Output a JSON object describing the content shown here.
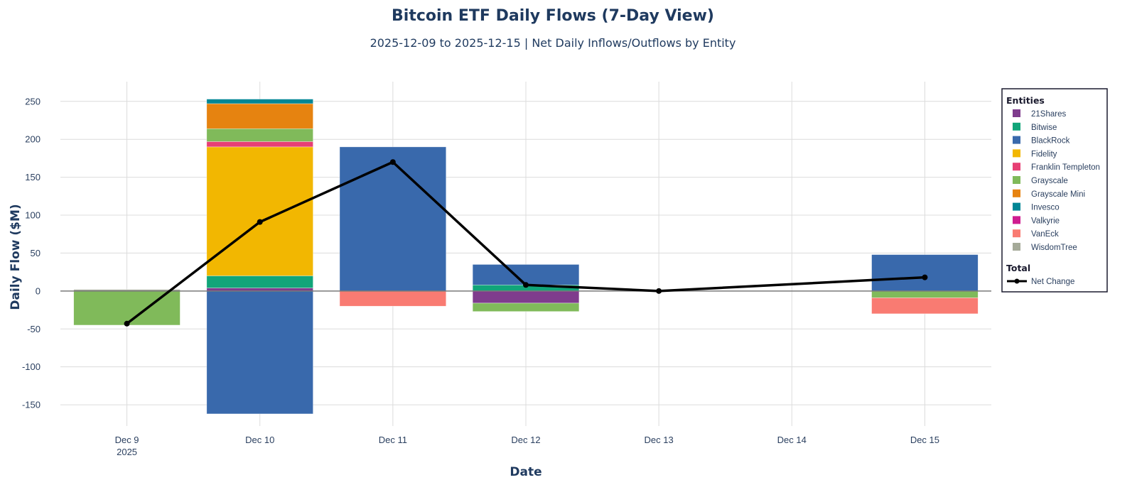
{
  "chart_data": {
    "type": "bar",
    "barmode": "relative",
    "title": "Bitcoin ETF Daily Flows (7-Day View)",
    "subtitle": "2025-12-09 to 2025-12-15 | Net Daily Inflows/Outflows by Entity",
    "xlabel": "Date",
    "ylabel": "Daily Flow ($M)",
    "ylim": [
      -178,
      276
    ],
    "yticks": [
      -150,
      -100,
      -50,
      0,
      50,
      100,
      150,
      200,
      250
    ],
    "grid": true,
    "categories": [
      "Dec 9",
      "Dec 10",
      "Dec 11",
      "Dec 12",
      "Dec 13",
      "Dec 14",
      "Dec 15"
    ],
    "first_tick_sublabel": "2025",
    "legend": {
      "title": "Entities",
      "total_title": "Total",
      "placement": "right"
    },
    "series": [
      {
        "name": "21Shares",
        "color": "#7f3c8d",
        "values": [
          0,
          4,
          0,
          -16,
          0,
          0,
          0
        ]
      },
      {
        "name": "Bitwise",
        "color": "#11a579",
        "values": [
          0,
          16,
          0,
          8,
          0,
          0,
          0
        ]
      },
      {
        "name": "BlackRock",
        "color": "#3969ac",
        "values": [
          0,
          -162,
          190,
          27,
          0,
          0,
          48
        ]
      },
      {
        "name": "Fidelity",
        "color": "#f2b701",
        "values": [
          0,
          170,
          0,
          0,
          0,
          0,
          0
        ]
      },
      {
        "name": "Franklin Templeton",
        "color": "#e73f74",
        "values": [
          0,
          7,
          0,
          0,
          0,
          0,
          0
        ]
      },
      {
        "name": "Grayscale",
        "color": "#80ba5a",
        "values": [
          -45,
          17,
          0,
          -11,
          0,
          0,
          -9
        ]
      },
      {
        "name": "Grayscale Mini",
        "color": "#e68310",
        "values": [
          0,
          33,
          0,
          0,
          0,
          0,
          0
        ]
      },
      {
        "name": "Invesco",
        "color": "#008695",
        "values": [
          0,
          6,
          0,
          0,
          0,
          0,
          0
        ]
      },
      {
        "name": "Valkyrie",
        "color": "#cf1c90",
        "values": [
          0,
          0,
          0,
          0,
          0,
          0,
          0
        ]
      },
      {
        "name": "VanEck",
        "color": "#f97b72",
        "values": [
          0,
          0,
          -20,
          0,
          0,
          0,
          -21
        ]
      },
      {
        "name": "WisdomTree",
        "color": "#a5aa99",
        "values": [
          2,
          0,
          0,
          0,
          0,
          0,
          0
        ]
      }
    ],
    "line": {
      "name": "Net Change",
      "color": "#000000",
      "x": [
        "Dec 9",
        "Dec 10",
        "Dec 11",
        "Dec 12",
        "Dec 13",
        "Dec 15"
      ],
      "values": [
        -43,
        91,
        170,
        8,
        0,
        18
      ]
    }
  }
}
